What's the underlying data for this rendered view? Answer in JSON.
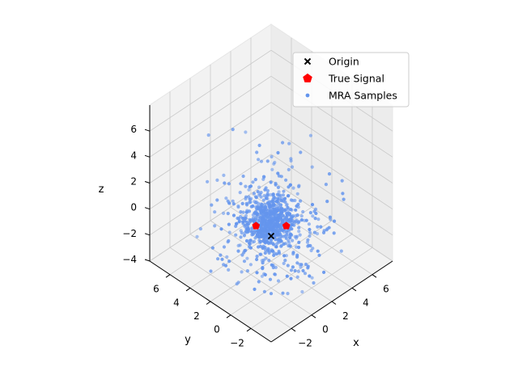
{
  "chart_data": {
    "type": "scatter",
    "projection": "3d",
    "title": "",
    "xlabel": "x",
    "ylabel": "y",
    "zlabel": "z",
    "xlim": [
      -4,
      8
    ],
    "ylim": [
      -4,
      8
    ],
    "zlim": [
      -4,
      8
    ],
    "x_ticks": [
      "−2",
      "0",
      "2",
      "4",
      "6"
    ],
    "y_ticks": [
      "−2",
      "0",
      "2",
      "4",
      "6"
    ],
    "z_ticks": [
      "−4",
      "−2",
      "0",
      "2",
      "4",
      "6"
    ],
    "grid": true,
    "legend_position": "upper right",
    "series": [
      {
        "name": "Origin",
        "marker": "x",
        "color": "#000000",
        "points": [
          [
            0,
            0,
            0
          ]
        ]
      },
      {
        "name": "True Signal",
        "marker": "pentagon",
        "color": "#ff0000",
        "points": [
          [
            1.5,
            0,
            0
          ],
          [
            0,
            1.5,
            0
          ]
        ]
      },
      {
        "name": "MRA Samples",
        "marker": "o",
        "color": "#6495ed",
        "cloud": {
          "count": 900,
          "center": [
            0.5,
            0.5,
            0.5
          ],
          "core_spread": 0.8,
          "outer_spread": 2.0,
          "x_range": [
            -3,
            7
          ],
          "y_range": [
            -3,
            7
          ],
          "z_range": [
            -4,
            6.5
          ]
        }
      }
    ]
  }
}
